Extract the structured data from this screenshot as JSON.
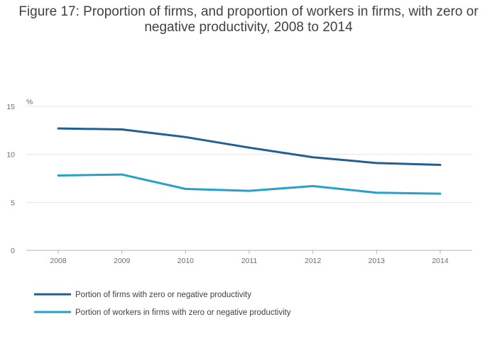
{
  "chart_data": {
    "type": "line",
    "title": "Figure 17: Proportion of firms, and proportion of workers in firms, with zero or negative productivity, 2008 to 2014",
    "ylabel": "%",
    "xlabel": "",
    "ylim": [
      0,
      15
    ],
    "yticks": [
      0,
      5,
      10,
      15
    ],
    "categories": [
      "2008",
      "2009",
      "2010",
      "2011",
      "2012",
      "2013",
      "2014"
    ],
    "series": [
      {
        "name": "Portion of firms with zero or negative productivity",
        "color": "#206095",
        "values": [
          12.7,
          12.6,
          11.8,
          10.7,
          9.7,
          9.1,
          8.9
        ]
      },
      {
        "name": "Portion of workers in firms with zero or negative productivity",
        "color": "#27a0cc",
        "values": [
          7.8,
          7.9,
          6.4,
          6.2,
          6.7,
          6.0,
          5.9
        ]
      }
    ],
    "grid": true,
    "legend_position": "bottom-left"
  }
}
